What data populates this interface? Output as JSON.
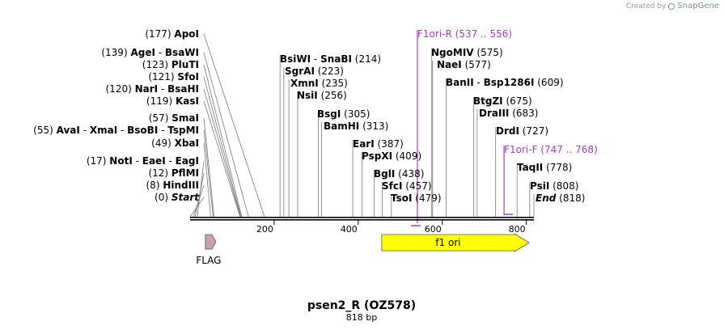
{
  "credit": {
    "created_by": "Created by",
    "brand": "SnapGene"
  },
  "map": {
    "title": "psen2_R (OZ578)",
    "length_label": "818 bp",
    "total_bp": 818,
    "ticks": [
      {
        "bp": 200,
        "label": "200"
      },
      {
        "bp": 400,
        "label": "400"
      },
      {
        "bp": 600,
        "label": "600"
      },
      {
        "bp": 800,
        "label": "800"
      }
    ]
  },
  "enzymes": [
    {
      "rows": [
        {
          "pos": "(177)",
          "name": "ApoI",
          "bp": 177
        }
      ]
    },
    {
      "rows": [
        {
          "pos": "(139)",
          "name": "AgeI",
          "bp": 139
        },
        {
          "name": "BsaWI",
          "bp": 139
        }
      ]
    },
    {
      "rows": [
        {
          "pos": "(123)",
          "name": "PluTI",
          "bp": 123
        }
      ]
    },
    {
      "rows": [
        {
          "pos": "(121)",
          "name": "SfoI",
          "bp": 121
        }
      ]
    },
    {
      "rows": [
        {
          "pos": "(120)",
          "name": "NarI",
          "bp": 120
        },
        {
          "name": "BsaHI",
          "bp": 120
        }
      ]
    },
    {
      "rows": [
        {
          "pos": "(119)",
          "name": "KasI",
          "bp": 119
        }
      ]
    },
    {
      "rows": [
        {
          "pos": "(57)",
          "name": "SmaI",
          "bp": 57
        }
      ]
    },
    {
      "rows": [
        {
          "pos": "(55)",
          "name": "AvaI",
          "bp": 55
        },
        {
          "name": "XmaI",
          "bp": 55
        },
        {
          "name": "BsoBI",
          "bp": 55
        },
        {
          "name": "TspMI",
          "bp": 55
        }
      ]
    },
    {
      "rows": [
        {
          "pos": "(49)",
          "name": "XbaI",
          "bp": 49
        }
      ]
    },
    {
      "rows": [
        {
          "pos": "(17)",
          "name": "NotI",
          "bp": 17
        },
        {
          "name": "EaeI",
          "bp": 17
        },
        {
          "name": "EagI",
          "bp": 17
        }
      ]
    },
    {
      "rows": [
        {
          "pos": "(12)",
          "name": "PflMI",
          "bp": 12
        }
      ]
    },
    {
      "rows": [
        {
          "pos": "(8)",
          "name": "HindIII",
          "bp": 8
        }
      ]
    },
    {
      "rows": [
        {
          "pos": "(0)",
          "name": "Start",
          "bp": 0,
          "italic": true
        }
      ]
    }
  ],
  "enzymes_right": [
    {
      "name": "BsiWI",
      "name2": "SnaBI",
      "pos": "(214)",
      "bp": 214
    },
    {
      "name": "SgrAI",
      "pos": "(223)",
      "bp": 223
    },
    {
      "name": "XmnI",
      "pos": "(235)",
      "bp": 235
    },
    {
      "name": "NsiI",
      "pos": "(256)",
      "bp": 256
    },
    {
      "name": "BsgI",
      "pos": "(305)",
      "bp": 305
    },
    {
      "name": "BamHI",
      "pos": "(313)",
      "bp": 313
    },
    {
      "name": "EarI",
      "pos": "(387)",
      "bp": 387
    },
    {
      "name": "PspXI",
      "pos": "(409)",
      "bp": 409,
      "display": "PspXI"
    },
    {
      "name": "BglI",
      "pos": "(438)",
      "bp": 438
    },
    {
      "name": "SfcI",
      "pos": "(457)",
      "bp": 457
    },
    {
      "name": "TsoI",
      "pos": "(479)",
      "bp": 479
    },
    {
      "name": "NgoMIV",
      "pos": "(575)",
      "bp": 575
    },
    {
      "name": "NaeI",
      "pos": "(577)",
      "bp": 577
    },
    {
      "name": "BanII",
      "name2": "Bsp1286I",
      "pos": "(609)",
      "bp": 609
    },
    {
      "name": "BtgZI",
      "pos": "(675)",
      "bp": 675
    },
    {
      "name": "DraIII",
      "pos": "(683)",
      "bp": 683
    },
    {
      "name": "DrdI",
      "pos": "(727)",
      "bp": 727
    },
    {
      "name": "TaqII",
      "pos": "(778)",
      "bp": 778
    },
    {
      "name": "PsiI",
      "pos": "(808)",
      "bp": 808
    },
    {
      "name": "End",
      "pos": "(818)",
      "bp": 818,
      "italic": true
    }
  ],
  "primers": [
    {
      "name": "F1ori-R",
      "range": "(537 .. 556)",
      "start": 537,
      "end": 556
    },
    {
      "name": "F1ori-F",
      "range": "(747 .. 768)",
      "start": 747,
      "end": 768
    }
  ],
  "features": [
    {
      "name": "FLAG",
      "start": 21,
      "end": 44,
      "color": "#c8a0b0",
      "direction": "forward"
    },
    {
      "name": "f1 ori",
      "start": 456,
      "end": 818,
      "color": "#ffff00",
      "direction": "forward"
    }
  ]
}
